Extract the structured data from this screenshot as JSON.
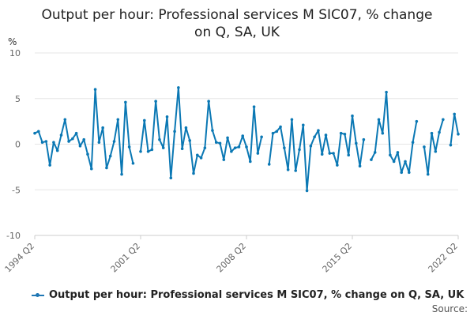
{
  "title_line1": "Output per hour: Professional services M SIC07, % change",
  "title_line2": "on Q, SA, UK",
  "source_label": "Source:",
  "colors": {
    "series": "#0b78b4",
    "grid": "#e6e6e6",
    "axis": "#cccccc",
    "text": "#666666"
  },
  "chart_data": {
    "type": "line",
    "ylabel": "%",
    "ylim": [
      -10,
      10
    ],
    "yticks": [
      10,
      5,
      0,
      -5,
      -10
    ],
    "xlim": [
      1994.25,
      2022.25
    ],
    "xticks": [
      {
        "label": "1994 Q2",
        "value": 1994.25
      },
      {
        "label": "2001 Q2",
        "value": 2001.25
      },
      {
        "label": "2008 Q2",
        "value": 2008.25
      },
      {
        "label": "2015 Q2",
        "value": 2015.25
      },
      {
        "label": "2022 Q2",
        "value": 2022.25
      }
    ],
    "grid": true,
    "legend_position": "bottom",
    "series": [
      {
        "name": "Output per hour: Professional services M SIC07, % change on Q, SA, UK",
        "start": 1994.25,
        "step": 0.25,
        "values": [
          1.2,
          1.4,
          0.2,
          0.3,
          -2.3,
          0.2,
          -0.7,
          1.0,
          2.7,
          0.3,
          0.6,
          1.2,
          -0.2,
          0.5,
          -1.1,
          -2.7,
          6.0,
          0.2,
          1.8,
          -2.6,
          -1.3,
          0.3,
          2.7,
          -3.3,
          4.6,
          -0.3,
          -2.1,
          null,
          -0.8,
          2.6,
          -0.8,
          -0.6,
          4.7,
          0.5,
          -0.4,
          3.0,
          -3.7,
          1.4,
          6.2,
          -0.5,
          1.8,
          0.4,
          -3.2,
          -1.2,
          -1.5,
          -0.4,
          4.7,
          1.5,
          0.2,
          0.1,
          -1.7,
          0.7,
          -0.8,
          -0.4,
          -0.3,
          0.9,
          -0.3,
          -1.9,
          4.1,
          -1.0,
          0.8,
          null,
          -2.2,
          1.2,
          1.4,
          1.9,
          -0.4,
          -2.8,
          2.7,
          -2.9,
          -0.6,
          2.1,
          -5.1,
          -0.2,
          0.8,
          1.5,
          -1.1,
          1.0,
          -1.0,
          -1.0,
          -2.3,
          1.2,
          1.1,
          -1.2,
          3.1,
          0.1,
          -2.4,
          0.5,
          null,
          -1.7,
          -0.9,
          2.7,
          1.2,
          5.7,
          -1.2,
          -1.9,
          -0.9,
          -3.1,
          -1.9,
          -3.1,
          0.2,
          2.5,
          null,
          -0.3,
          -3.3,
          1.2,
          -0.8,
          1.3,
          2.7,
          null,
          -0.1,
          3.3,
          1.1
        ]
      }
    ]
  }
}
